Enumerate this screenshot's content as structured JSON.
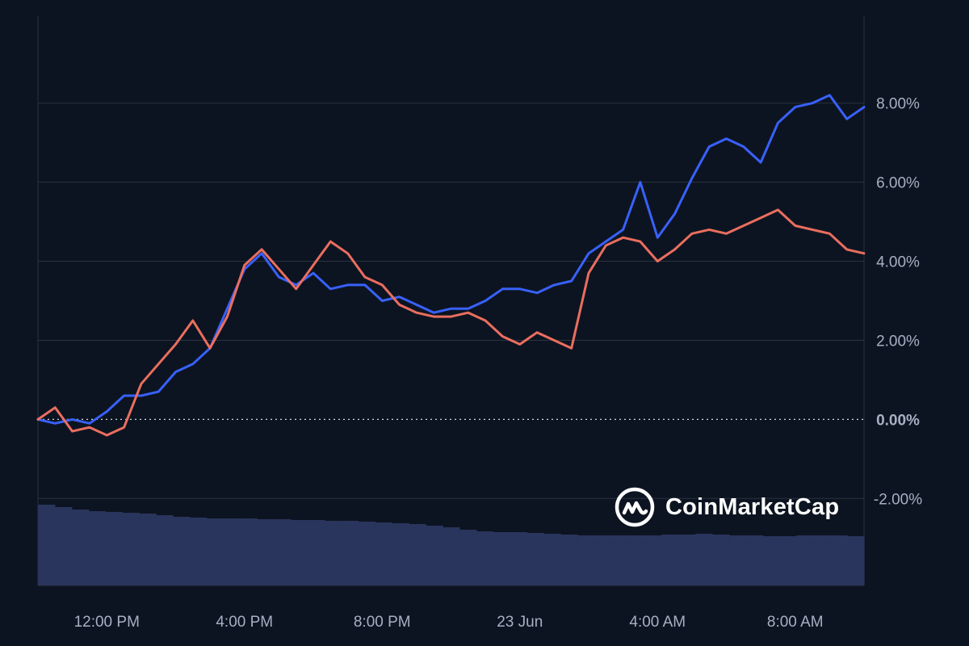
{
  "brand": {
    "name": "CoinMarketCap",
    "icon": "coinmarketcap-logo-icon"
  },
  "colors": {
    "background": "#0d1421",
    "grid": "#2a3140",
    "blue_series": "#3861fb",
    "red_series": "#ea6e5f",
    "volume": "#29355c",
    "tick_text": "#a6b0c3",
    "zero_line": "#cfd6e4"
  },
  "chart_data": {
    "type": "line",
    "title": "",
    "xlabel": "",
    "ylabel": "",
    "x_tick_labels": [
      "12:00 PM",
      "4:00 PM",
      "8:00 PM",
      "23 Jun",
      "4:00 AM",
      "8:00 AM"
    ],
    "y_tick_labels": [
      "8.00%",
      "6.00%",
      "4.00%",
      "2.00%",
      "0.00%",
      "-2.00%"
    ],
    "y_ticks": [
      8,
      6,
      4,
      2,
      0,
      -2
    ],
    "ylim": [
      -4.2,
      10.2
    ],
    "y_unit": "%",
    "grid": "horizontal",
    "legend": "none",
    "x_hours": [
      0,
      0.5,
      1,
      1.5,
      2,
      2.5,
      3,
      3.5,
      4,
      4.5,
      5,
      5.5,
      6,
      6.5,
      7,
      7.5,
      8,
      8.5,
      9,
      9.5,
      10,
      10.5,
      11,
      11.5,
      12,
      12.5,
      13,
      13.5,
      14,
      14.5,
      15,
      15.5,
      16,
      16.5,
      17,
      17.5,
      18,
      18.5,
      19,
      19.5,
      20,
      20.5,
      21,
      21.5,
      22,
      22.5,
      23,
      23.5,
      24
    ],
    "x_tick_hours": [
      2,
      6,
      10,
      14,
      18,
      22
    ],
    "series": [
      {
        "color": "#3861fb",
        "values": [
          0.0,
          -0.1,
          0.0,
          -0.1,
          0.2,
          0.6,
          0.6,
          0.7,
          1.2,
          1.4,
          1.8,
          2.8,
          3.8,
          4.2,
          3.6,
          3.4,
          3.7,
          3.3,
          3.4,
          3.4,
          3.0,
          3.1,
          2.9,
          2.7,
          2.8,
          2.8,
          3.0,
          3.3,
          3.3,
          3.2,
          3.4,
          3.5,
          4.2,
          4.5,
          4.8,
          6.0,
          4.6,
          5.2,
          6.1,
          6.9,
          7.1,
          6.9,
          6.5,
          7.5,
          7.9,
          8.0,
          8.2,
          7.6,
          7.9
        ]
      },
      {
        "color": "#ea6e5f",
        "values": [
          0.0,
          0.3,
          -0.3,
          -0.2,
          -0.4,
          -0.2,
          0.9,
          1.4,
          1.9,
          2.5,
          1.8,
          2.6,
          3.9,
          4.3,
          3.8,
          3.3,
          3.9,
          4.5,
          4.2,
          3.6,
          3.4,
          2.9,
          2.7,
          2.6,
          2.6,
          2.7,
          2.5,
          2.1,
          1.9,
          2.2,
          2.0,
          1.8,
          3.7,
          4.4,
          4.6,
          4.5,
          4.0,
          4.3,
          4.7,
          4.8,
          4.7,
          4.9,
          5.1,
          5.3,
          4.9,
          4.8,
          4.7,
          4.3,
          4.2
        ]
      }
    ],
    "volume_values": [
      1.0,
      0.97,
      0.94,
      0.92,
      0.91,
      0.9,
      0.89,
      0.87,
      0.85,
      0.84,
      0.83,
      0.83,
      0.83,
      0.82,
      0.82,
      0.81,
      0.81,
      0.8,
      0.8,
      0.79,
      0.78,
      0.77,
      0.76,
      0.74,
      0.72,
      0.69,
      0.67,
      0.66,
      0.66,
      0.65,
      0.64,
      0.63,
      0.62,
      0.62,
      0.62,
      0.62,
      0.62,
      0.63,
      0.63,
      0.64,
      0.63,
      0.62,
      0.62,
      0.61,
      0.61,
      0.62,
      0.62,
      0.62,
      0.61
    ]
  }
}
